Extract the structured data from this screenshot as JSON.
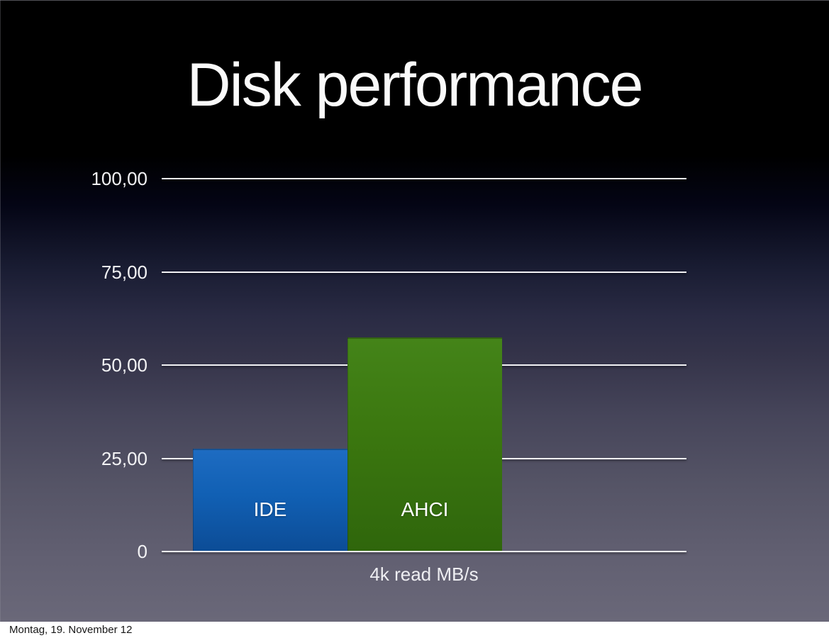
{
  "slide": {
    "title": "Disk performance",
    "footer": "Montag, 19. November 12"
  },
  "chart_data": {
    "type": "bar",
    "title": "Disk performance",
    "categories": [
      "4k read MB/s"
    ],
    "series": [
      {
        "name": "IDE",
        "values": [
          27.5
        ],
        "color": "#1160b4",
        "color_top": "#1e6cc2",
        "color_bottom": "#0c4c96"
      },
      {
        "name": "AHCI",
        "values": [
          57.5
        ],
        "color": "#3b770f",
        "color_top": "#448419",
        "color_bottom": "#2f660c"
      }
    ],
    "xlabel": "4k read MB/s",
    "ylabel": "",
    "ylim": [
      0,
      100
    ],
    "yticks": [
      {
        "label": "100,00",
        "value": 100
      },
      {
        "label": "75,00",
        "value": 75
      },
      {
        "label": "50,00",
        "value": 50
      },
      {
        "label": "25,00",
        "value": 25
      },
      {
        "label": "0",
        "value": 0
      }
    ],
    "grid": true,
    "legend_position": "labels-inside-bars",
    "number_format": "decimal-comma"
  },
  "colors": {
    "background_top": "#000000",
    "background_bottom": "#6a6879",
    "gridline": "#f2f2f4",
    "title_text": "#fafafa",
    "axis_text": "#f3f3f5",
    "footer_background": "#ffffff",
    "footer_text": "#161616"
  }
}
